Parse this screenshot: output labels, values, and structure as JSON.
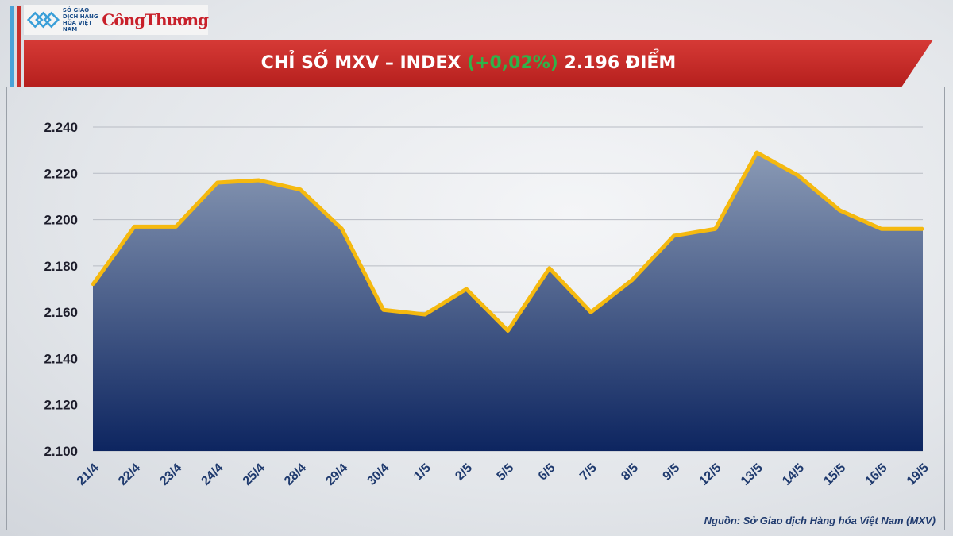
{
  "logo": {
    "org_text": "SỞ GIAO DỊCH HÀNG HÓA VIỆT NAM",
    "brand": "CôngThương"
  },
  "header": {
    "title_prefix": "CHỈ SỐ MXV – INDEX ",
    "change": "(+0,02%)",
    "title_suffix": " 2.196 ĐIỂM"
  },
  "source": "Nguồn: Sở Giao dịch Hàng hóa Việt Nam (MXV)",
  "colors": {
    "line": "#f5b90f",
    "fill_top": "#8a9ab5",
    "fill_bottom": "#0d2560",
    "banner": "#c8302c",
    "change": "#2fb34a"
  },
  "chart_data": {
    "type": "area",
    "title": "CHỈ SỐ MXV – INDEX (+0,02%) 2.196 ĐIỂM",
    "categories": [
      "21/4",
      "22/4",
      "23/4",
      "24/4",
      "25/4",
      "28/4",
      "29/4",
      "30/4",
      "1/5",
      "2/5",
      "5/5",
      "6/5",
      "7/5",
      "8/5",
      "9/5",
      "12/5",
      "13/5",
      "14/5",
      "15/5",
      "16/5",
      "19/5"
    ],
    "values": [
      2172,
      2197,
      2197,
      2216,
      2217,
      2213,
      2196,
      2161,
      2159,
      2170,
      2152,
      2179,
      2160,
      2174,
      2193,
      2196,
      2229,
      2219,
      2204,
      2196,
      2196
    ],
    "ylim": [
      2100,
      2240
    ],
    "yticks": [
      2100,
      2120,
      2140,
      2160,
      2180,
      2200,
      2220,
      2240
    ],
    "ytick_labels": [
      "2.100",
      "2.120",
      "2.140",
      "2.160",
      "2.180",
      "2.200",
      "2.220",
      "2.240"
    ],
    "grid": true,
    "legend": "none"
  }
}
